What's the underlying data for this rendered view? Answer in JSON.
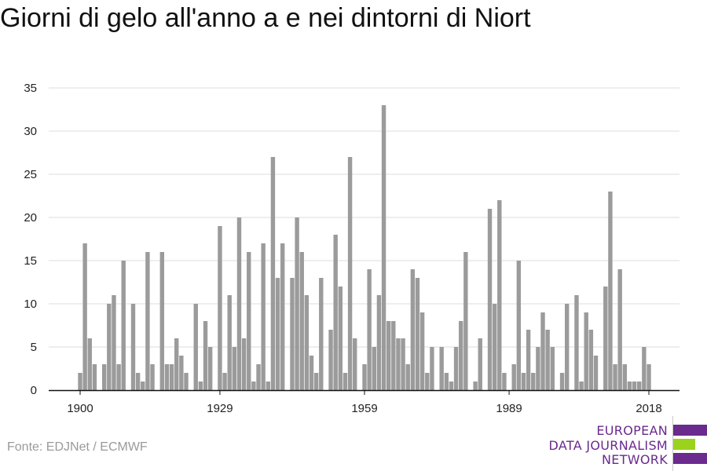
{
  "colors": {
    "bar": "#9b9b9b",
    "grid": "#dddddd",
    "axis": "#111111",
    "logo_purple": "#6a2a8e",
    "logo_green": "#9ad21e"
  },
  "chart_data": {
    "type": "bar",
    "title": "Giorni di gelo all'anno a e nei dintorni di Niort",
    "xlabel": "",
    "ylabel": "",
    "ylim": [
      0,
      35
    ],
    "y_ticks": [
      0,
      5,
      10,
      15,
      20,
      25,
      30,
      35
    ],
    "x_ticks": [
      1900,
      1929,
      1959,
      1989,
      2018
    ],
    "grid": true,
    "x": [
      1900,
      1901,
      1902,
      1903,
      1904,
      1905,
      1906,
      1907,
      1908,
      1909,
      1910,
      1911,
      1912,
      1913,
      1914,
      1915,
      1916,
      1917,
      1918,
      1919,
      1920,
      1921,
      1922,
      1923,
      1924,
      1925,
      1926,
      1927,
      1928,
      1929,
      1930,
      1931,
      1932,
      1933,
      1934,
      1935,
      1936,
      1937,
      1938,
      1939,
      1940,
      1941,
      1942,
      1943,
      1944,
      1945,
      1946,
      1947,
      1948,
      1949,
      1950,
      1951,
      1952,
      1953,
      1954,
      1955,
      1956,
      1957,
      1958,
      1959,
      1960,
      1961,
      1962,
      1963,
      1964,
      1965,
      1966,
      1967,
      1968,
      1969,
      1970,
      1971,
      1972,
      1973,
      1974,
      1975,
      1976,
      1977,
      1978,
      1979,
      1980,
      1981,
      1982,
      1983,
      1984,
      1985,
      1986,
      1987,
      1988,
      1989,
      1990,
      1991,
      1992,
      1993,
      1994,
      1995,
      1996,
      1997,
      1998,
      1999,
      2000,
      2001,
      2002,
      2003,
      2004,
      2005,
      2006,
      2007,
      2008,
      2009,
      2010,
      2011,
      2012,
      2013,
      2014,
      2015,
      2016,
      2017,
      2018
    ],
    "values": [
      2,
      17,
      6,
      3,
      0,
      3,
      10,
      11,
      3,
      15,
      0,
      10,
      2,
      1,
      16,
      3,
      0,
      16,
      3,
      3,
      6,
      4,
      2,
      0,
      10,
      1,
      8,
      5,
      0,
      19,
      2,
      11,
      5,
      20,
      6,
      16,
      1,
      3,
      17,
      1,
      27,
      13,
      17,
      0,
      13,
      20,
      16,
      11,
      4,
      2,
      13,
      0,
      7,
      18,
      12,
      2,
      27,
      6,
      0,
      3,
      14,
      5,
      11,
      33,
      8,
      8,
      6,
      6,
      3,
      14,
      13,
      9,
      2,
      5,
      0,
      5,
      2,
      1,
      5,
      8,
      16,
      0,
      1,
      6,
      0,
      21,
      10,
      22,
      2,
      0,
      3,
      15,
      2,
      7,
      2,
      5,
      9,
      7,
      5,
      0,
      2,
      10,
      0,
      11,
      1,
      9,
      7,
      4,
      0,
      12,
      23,
      3,
      14,
      3,
      1,
      1,
      1,
      5,
      3
    ]
  },
  "source": "Fonte: EDJNet / ECMWF",
  "logo": {
    "line1": "EUROPEAN",
    "line2": "DATA JOURNALISM",
    "line3": "NETWORK"
  }
}
